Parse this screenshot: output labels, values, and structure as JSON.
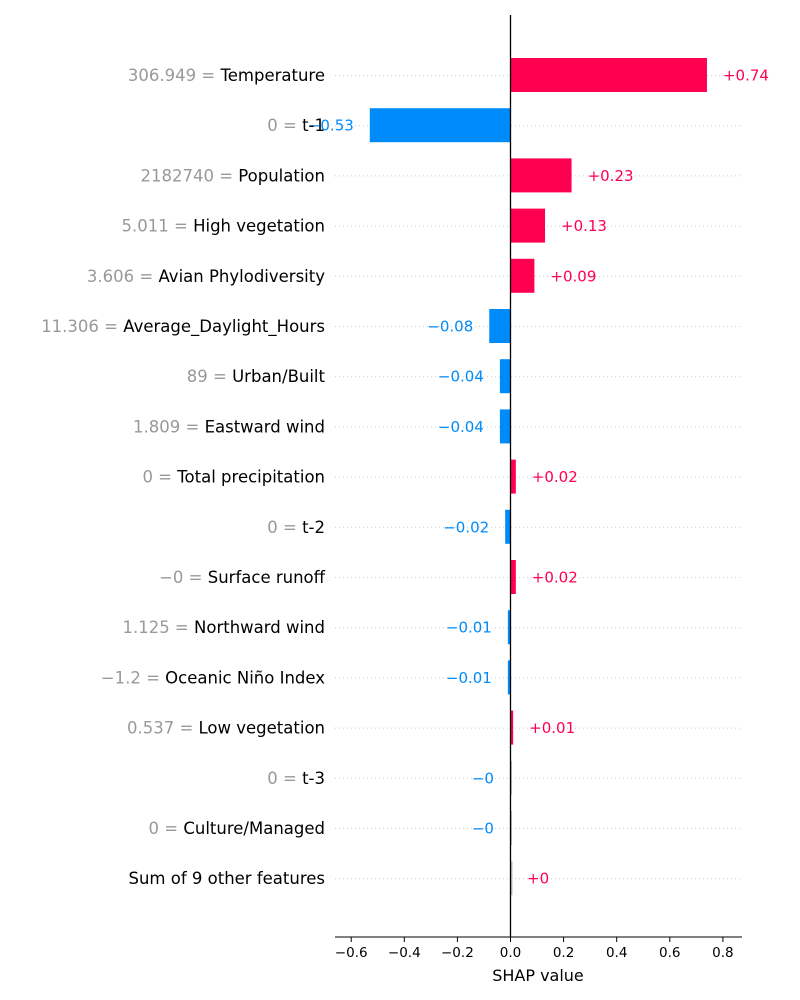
{
  "chart_data": {
    "type": "bar",
    "xlabel": "SHAP value",
    "xlim": [
      -0.655,
      0.87
    ],
    "xticks": [
      {
        "value": -0.6,
        "label": "−0.6"
      },
      {
        "value": -0.4,
        "label": "−0.4"
      },
      {
        "value": -0.2,
        "label": "−0.2"
      },
      {
        "value": 0.0,
        "label": "0.0"
      },
      {
        "value": 0.2,
        "label": "0.2"
      },
      {
        "value": 0.4,
        "label": "0.4"
      },
      {
        "value": 0.6,
        "label": "0.6"
      },
      {
        "value": 0.8,
        "label": "0.8"
      }
    ],
    "colors": {
      "positive": "#ff0051",
      "negative": "#008bfb",
      "near_zero": "#c0c0c0",
      "feature_value_text": "#999999",
      "grid": "#cccccc"
    },
    "features": [
      {
        "feature_value": "306.949",
        "name": "Temperature",
        "shap": 0.74,
        "label": "+0.74"
      },
      {
        "feature_value": "0",
        "name": "t-1",
        "shap": -0.53,
        "label": "−0.53"
      },
      {
        "feature_value": "2182740",
        "name": "Population",
        "shap": 0.23,
        "label": "+0.23"
      },
      {
        "feature_value": "5.011",
        "name": "High vegetation",
        "shap": 0.13,
        "label": "+0.13"
      },
      {
        "feature_value": "3.606",
        "name": "Avian Phylodiversity",
        "shap": 0.09,
        "label": "+0.09"
      },
      {
        "feature_value": "11.306",
        "name": "Average_Daylight_Hours",
        "shap": -0.08,
        "label": "−0.08"
      },
      {
        "feature_value": "89",
        "name": "Urban/Built",
        "shap": -0.04,
        "label": "−0.04"
      },
      {
        "feature_value": "1.809",
        "name": "Eastward wind",
        "shap": -0.04,
        "label": "−0.04"
      },
      {
        "feature_value": "0",
        "name": "Total precipitation",
        "shap": 0.02,
        "label": "+0.02"
      },
      {
        "feature_value": "0",
        "name": "t-2",
        "shap": -0.02,
        "label": "−0.02"
      },
      {
        "feature_value": "−0",
        "name": "Surface runoff",
        "shap": 0.02,
        "label": "+0.02"
      },
      {
        "feature_value": "1.125",
        "name": "Northward wind",
        "shap": -0.01,
        "label": "−0.01"
      },
      {
        "feature_value": "−1.2",
        "name": "Oceanic Niño Index",
        "shap": -0.01,
        "label": "−0.01"
      },
      {
        "feature_value": "0.537",
        "name": "Low vegetation",
        "shap": 0.01,
        "label": "+0.01"
      },
      {
        "feature_value": "0",
        "name": "t-3",
        "shap": -0.002,
        "label": "−0"
      },
      {
        "feature_value": "0",
        "name": "Culture/Managed",
        "shap": -0.002,
        "label": "−0"
      },
      {
        "feature_value": "",
        "name": "Sum of 9 other features",
        "shap": 0.002,
        "label": "+0"
      }
    ]
  }
}
